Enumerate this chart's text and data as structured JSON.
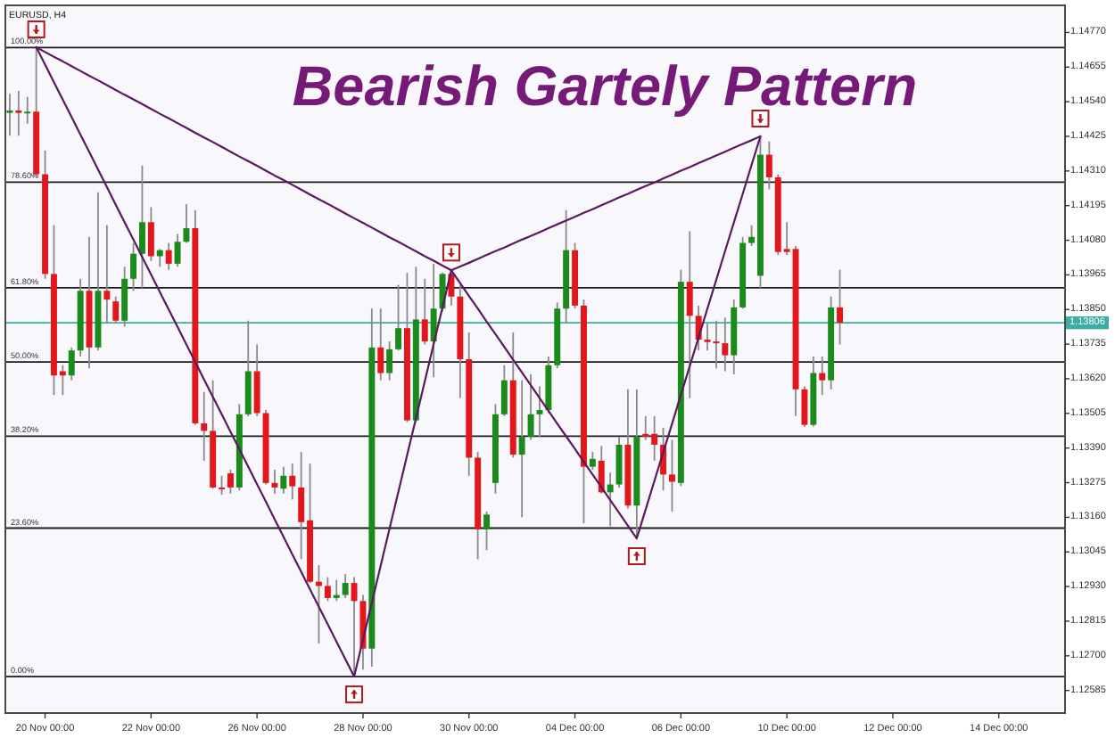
{
  "chart_data": {
    "type": "candlestick",
    "title": "Bearish Gartely Pattern",
    "subtitle": "EURUSD, H4",
    "categories": [
      null,
      null,
      null,
      null,
      "20 Nov 00:00",
      null,
      null,
      null,
      null,
      null,
      null,
      null,
      null,
      null,
      null,
      null,
      "22 Nov 00:00",
      null,
      null,
      null,
      null,
      null,
      null,
      null,
      null,
      null,
      null,
      null,
      "26 Nov 00:00",
      null,
      null,
      null,
      null,
      null,
      null,
      null,
      null,
      null,
      null,
      null,
      "28 Nov 00:00",
      null,
      null,
      null,
      null,
      null,
      null,
      null,
      null,
      null,
      null,
      null,
      "30 Nov 00:00",
      null,
      null,
      null,
      null,
      null,
      null,
      null,
      null,
      null,
      null,
      null,
      "04 Dec 00:00",
      null,
      null,
      null,
      null,
      null,
      null,
      null,
      null,
      null,
      null,
      null,
      "06 Dec 00:00",
      null,
      null,
      null,
      null,
      null,
      null,
      null,
      null,
      null,
      null,
      null,
      "10 Dec 00:00",
      null,
      null,
      null,
      null,
      null,
      null,
      null,
      null,
      null,
      null,
      null,
      "12 Dec 00:00",
      null,
      null,
      null,
      null,
      null,
      null,
      null,
      null,
      null,
      null,
      null,
      "14 Dec 00:00",
      null,
      null,
      null,
      null,
      null,
      null,
      null
    ],
    "ohlc": [
      [
        1.14503,
        1.14566,
        1.14427,
        1.14511
      ],
      [
        1.14511,
        1.14576,
        1.14427,
        1.14503
      ],
      [
        1.14503,
        1.14556,
        1.14467,
        1.14507
      ],
      [
        1.14507,
        1.14721,
        1.14289,
        1.14299
      ],
      [
        1.14299,
        1.14378,
        1.13952,
        1.13968
      ],
      [
        1.13968,
        1.1413,
        1.13566,
        1.13631
      ],
      [
        1.13645,
        1.13665,
        1.13566,
        1.13631
      ],
      [
        1.13631,
        1.13724,
        1.13615,
        1.13714
      ],
      [
        1.13714,
        1.13952,
        1.13694,
        1.13912
      ],
      [
        1.13912,
        1.14091,
        1.13655,
        1.13724
      ],
      [
        1.13724,
        1.14239,
        1.13714,
        1.13912
      ],
      [
        1.13912,
        1.1413,
        1.13803,
        1.13883
      ],
      [
        1.13877,
        1.13893,
        1.13803,
        1.13813
      ],
      [
        1.13813,
        1.13992,
        1.13793,
        1.13952
      ],
      [
        1.13952,
        1.14071,
        1.13912,
        1.14035
      ],
      [
        1.14035,
        1.14328,
        1.13922,
        1.1414
      ],
      [
        1.1414,
        1.1419,
        1.14011,
        1.14027
      ],
      [
        1.14027,
        1.14051,
        1.13992,
        1.14047
      ],
      [
        1.14047,
        1.14071,
        1.13982,
        1.14002
      ],
      [
        1.14002,
        1.14101,
        1.13992,
        1.14075
      ],
      [
        1.14075,
        1.142,
        1.14071,
        1.1412
      ],
      [
        1.1412,
        1.1418,
        1.13467,
        1.13472
      ],
      [
        1.13472,
        1.13576,
        1.13348,
        1.13447
      ],
      [
        1.13447,
        1.13615,
        1.13255,
        1.13259
      ],
      [
        1.13259,
        1.13298,
        1.13235,
        1.13255
      ],
      [
        1.13306,
        1.13318,
        1.13239,
        1.13259
      ],
      [
        1.13259,
        1.13536,
        1.13249,
        1.13502
      ],
      [
        1.13502,
        1.13813,
        1.13496,
        1.13645
      ],
      [
        1.13645,
        1.13734,
        1.13496,
        1.13506
      ],
      [
        1.13506,
        1.13516,
        1.13269,
        1.13274
      ],
      [
        1.13274,
        1.13318,
        1.13239,
        1.13259
      ],
      [
        1.13255,
        1.13328,
        1.13239,
        1.13298
      ],
      [
        1.13298,
        1.13338,
        1.13219,
        1.13263
      ],
      [
        1.13259,
        1.13377,
        1.13021,
        1.13144
      ],
      [
        1.1315,
        1.13338,
        1.12942,
        1.12946
      ],
      [
        1.12946,
        1.13001,
        1.12741,
        1.12932
      ],
      [
        1.12932,
        1.12961,
        1.12882,
        1.12892
      ],
      [
        1.12892,
        1.12952,
        1.12882,
        1.12902
      ],
      [
        1.12902,
        1.12971,
        1.12892,
        1.12942
      ],
      [
        1.12942,
        1.12961,
        1.12631,
        1.12882
      ],
      [
        1.12882,
        1.12902,
        1.12654,
        1.12724
      ],
      [
        1.12724,
        1.13853,
        1.12664,
        1.13724
      ],
      [
        1.13724,
        1.13853,
        1.13615,
        1.13639
      ],
      [
        1.13639,
        1.13744,
        1.13615,
        1.13718
      ],
      [
        1.13718,
        1.13932,
        1.13714,
        1.13788
      ],
      [
        1.13788,
        1.13972,
        1.13476,
        1.13482
      ],
      [
        1.13482,
        1.13992,
        1.13476,
        1.13817
      ],
      [
        1.13817,
        1.13952,
        1.13734,
        1.13744
      ],
      [
        1.13744,
        1.14002,
        1.13625,
        1.13853
      ],
      [
        1.13853,
        1.13972,
        1.13843,
        1.13968
      ],
      [
        1.13968,
        1.1398,
        1.13863,
        1.13893
      ],
      [
        1.13893,
        1.13932,
        1.13556,
        1.13685
      ],
      [
        1.13685,
        1.13774,
        1.13298,
        1.13358
      ],
      [
        1.13358,
        1.13377,
        1.13021,
        1.1312
      ],
      [
        1.1312,
        1.13179,
        1.13051,
        1.13169
      ],
      [
        1.13274,
        1.13536,
        1.13239,
        1.13502
      ],
      [
        1.13502,
        1.13665,
        1.13496,
        1.13615
      ],
      [
        1.13615,
        1.13774,
        1.13358,
        1.13368
      ],
      [
        1.13368,
        1.13615,
        1.1316,
        1.13427
      ],
      [
        1.13427,
        1.13635,
        1.13417,
        1.13502
      ],
      [
        1.13502,
        1.13595,
        1.13427,
        1.13516
      ],
      [
        1.13516,
        1.13694,
        1.13506,
        1.13665
      ],
      [
        1.13665,
        1.13873,
        1.13655,
        1.13853
      ],
      [
        1.13853,
        1.1418,
        1.13803,
        1.14047
      ],
      [
        1.14047,
        1.14071,
        1.13853,
        1.13863
      ],
      [
        1.13863,
        1.13883,
        1.1314,
        1.13328
      ],
      [
        1.13328,
        1.13377,
        1.13318,
        1.13354
      ],
      [
        1.13348,
        1.13397,
        1.13239,
        1.13243
      ],
      [
        1.13243,
        1.13308,
        1.1313,
        1.13269
      ],
      [
        1.13269,
        1.13427,
        1.13259,
        1.13401
      ],
      [
        1.13401,
        1.13585,
        1.13189,
        1.13199
      ],
      [
        1.13199,
        1.13585,
        1.1309,
        1.13427
      ],
      [
        1.13437,
        1.13496,
        1.13417,
        1.13427
      ],
      [
        1.13437,
        1.13496,
        1.13348,
        1.13401
      ],
      [
        1.13401,
        1.13457,
        1.13249,
        1.13302
      ],
      [
        1.13302,
        1.13417,
        1.13179,
        1.13278
      ],
      [
        1.13274,
        1.13982,
        1.13263,
        1.13942
      ],
      [
        1.13942,
        1.1411,
        1.13556,
        1.13829
      ],
      [
        1.13829,
        1.13863,
        1.13714,
        1.1375
      ],
      [
        1.1375,
        1.13803,
        1.13714,
        1.13742
      ],
      [
        1.13744,
        1.13813,
        1.13655,
        1.13738
      ],
      [
        1.13738,
        1.13823,
        1.13645,
        1.13698
      ],
      [
        1.13698,
        1.13883,
        1.13635,
        1.13857
      ],
      [
        1.13857,
        1.14091,
        1.13853,
        1.14071
      ],
      [
        1.14071,
        1.1413,
        1.14061,
        1.14091
      ],
      [
        1.13962,
        1.14425,
        1.13922,
        1.14364
      ],
      [
        1.14364,
        1.14408,
        1.14249,
        1.14289
      ],
      [
        1.14289,
        1.14299,
        1.14031,
        1.14041
      ],
      [
        1.14051,
        1.1414,
        1.14031,
        1.14041
      ],
      [
        1.14051,
        1.14061,
        1.13496,
        1.13585
      ],
      [
        1.13585,
        1.13595,
        1.13461,
        1.13467
      ],
      [
        1.13467,
        1.13694,
        1.13461,
        1.13639
      ],
      [
        1.13639,
        1.13694,
        1.13566,
        1.13615
      ],
      [
        1.13615,
        1.13893,
        1.13585,
        1.13857
      ],
      [
        1.13857,
        1.13982,
        1.13734,
        1.13806
      ],
      null,
      null,
      null,
      null,
      null,
      null,
      null,
      null,
      null,
      null,
      null,
      null,
      null,
      null,
      null,
      null,
      null,
      null,
      null,
      null,
      null,
      null,
      null,
      null,
      null
    ],
    "colors": [
      "#1a8a1a",
      "#e3161b",
      "#1a8a1a",
      "#e3161b",
      "#e3161b",
      "#e3161b",
      "#e3161b",
      "#1a8a1a",
      "#1a8a1a",
      "#e3161b",
      "#1a8a1a",
      "#e3161b",
      "#e3161b",
      "#1a8a1a",
      "#1a8a1a",
      "#1a8a1a",
      "#e3161b",
      "#1a8a1a",
      "#e3161b",
      "#1a8a1a",
      "#1a8a1a",
      "#e3161b",
      "#e3161b",
      "#e3161b",
      "#e3161b",
      "#e3161b",
      "#1a8a1a",
      "#1a8a1a",
      "#e3161b",
      "#e3161b",
      "#e3161b",
      "#1a8a1a",
      "#e3161b",
      "#e3161b",
      "#e3161b",
      "#e3161b",
      "#e3161b",
      "#1a8a1a",
      "#1a8a1a",
      "#e3161b",
      "#e3161b",
      "#1a8a1a",
      "#e3161b",
      "#1a8a1a",
      "#1a8a1a",
      "#e3161b",
      "#1a8a1a",
      "#e3161b",
      "#1a8a1a",
      "#1a8a1a",
      "#e3161b",
      "#e3161b",
      "#e3161b",
      "#e3161b",
      "#1a8a1a",
      "#1a8a1a",
      "#1a8a1a",
      "#e3161b",
      "#1a8a1a",
      "#1a8a1a",
      "#1a8a1a",
      "#1a8a1a",
      "#1a8a1a",
      "#1a8a1a",
      "#e3161b",
      "#e3161b",
      "#1a8a1a",
      "#e3161b",
      "#1a8a1a",
      "#1a8a1a",
      "#e3161b",
      "#1a8a1a",
      "#e3161b",
      "#e3161b",
      "#e3161b",
      "#e3161b",
      "#1a8a1a",
      "#e3161b",
      "#e3161b",
      "#e3161b",
      "#e3161b",
      "#e3161b",
      "#1a8a1a",
      "#1a8a1a",
      "#1a8a1a",
      "#1a8a1a",
      "#e3161b",
      "#e3161b",
      "#e3161b",
      "#e3161b",
      "#e3161b",
      "#1a8a1a",
      "#e3161b",
      "#1a8a1a",
      "#e3161b",
      null,
      null,
      null,
      null,
      null,
      null,
      null,
      null,
      null,
      null,
      null,
      null,
      null,
      null,
      null,
      null,
      null,
      null,
      null,
      null,
      null,
      null,
      null,
      null,
      null
    ],
    "series": [
      {
        "type": "line",
        "color": "#5a1a5e",
        "values": [
          null,
          null,
          null,
          1.14721,
          1.14663,
          1.14605,
          1.14547,
          1.14489,
          1.14431,
          1.14373,
          1.14315,
          1.14257,
          1.14198,
          1.1414,
          1.14082,
          1.14024,
          1.13966,
          1.13908,
          1.1385,
          1.13792,
          1.13734,
          1.13676,
          1.13618,
          1.1356,
          1.13502,
          1.13444,
          1.13386,
          1.13328,
          1.1327,
          1.13212,
          1.13153,
          1.13095,
          1.13037,
          1.12979,
          1.12921,
          1.12863,
          1.12805,
          1.12747,
          1.12689,
          1.12631,
          1.12754,
          1.12876,
          1.12999,
          1.13122,
          1.13244,
          1.13367,
          1.13489,
          1.13612,
          1.13735,
          1.13857,
          1.1398,
          null,
          null,
          null,
          null,
          null,
          null,
          null,
          null,
          null,
          null,
          null,
          null,
          null,
          null,
          null,
          null,
          null,
          null,
          null,
          null,
          null,
          null,
          null,
          null,
          null,
          null,
          null,
          null,
          null,
          null,
          null,
          null,
          null,
          null,
          null,
          null,
          null,
          null,
          null,
          null,
          null,
          null,
          null,
          null,
          null,
          null,
          null,
          null,
          null,
          null,
          null,
          null,
          null,
          null,
          null,
          null,
          null,
          null,
          null,
          null,
          null,
          null,
          null,
          null,
          null,
          null,
          null,
          null,
          null
        ]
      },
      {
        "type": "line",
        "color": "#5a1a5e",
        "values": [
          null,
          null,
          null,
          1.14721,
          1.14705,
          1.14689,
          1.14674,
          1.14658,
          1.14642,
          1.14626,
          1.14611,
          1.14595,
          1.14579,
          1.14563,
          1.14548,
          1.14532,
          1.14516,
          1.145,
          1.14485,
          1.14469,
          1.14453,
          1.14437,
          1.14421,
          1.14406,
          1.1439,
          1.14374,
          1.14358,
          1.14343,
          1.14327,
          1.14311,
          1.14295,
          1.1428,
          1.14264,
          1.14248,
          1.14232,
          1.14216,
          1.14201,
          1.14185,
          1.14169,
          1.14153,
          1.14138,
          1.14122,
          1.14106,
          1.1409,
          1.14075,
          1.14059,
          1.14043,
          1.14027,
          1.14012,
          1.13996,
          1.1398,
          null,
          null,
          null,
          null,
          null,
          null,
          null,
          null,
          null,
          null,
          null,
          null,
          null,
          null,
          null,
          null,
          null,
          null,
          null,
          null,
          null,
          null,
          null,
          null,
          null,
          null,
          null,
          null,
          null,
          null,
          null,
          null,
          null,
          null,
          null,
          null,
          null,
          null,
          null,
          null,
          null,
          null,
          null,
          null,
          null,
          null,
          null,
          null,
          null,
          null,
          null,
          null,
          null,
          null,
          null,
          null,
          null,
          null,
          null,
          null,
          null,
          null,
          null,
          null,
          null,
          null,
          null,
          null,
          null
        ]
      },
      {
        "type": "line",
        "color": "#5a1a5e",
        "values": [
          null,
          null,
          null,
          null,
          null,
          null,
          null,
          null,
          null,
          null,
          null,
          null,
          null,
          null,
          null,
          null,
          null,
          null,
          null,
          null,
          null,
          null,
          null,
          null,
          null,
          null,
          null,
          null,
          null,
          null,
          null,
          null,
          null,
          null,
          null,
          null,
          null,
          null,
          null,
          null,
          null,
          null,
          null,
          null,
          null,
          null,
          null,
          null,
          null,
          null,
          1.1398,
          1.13938,
          1.13895,
          1.13853,
          1.1381,
          1.13768,
          1.13726,
          1.13683,
          1.13641,
          1.13599,
          1.13556,
          1.13514,
          1.13471,
          1.13429,
          1.13387,
          1.13344,
          1.13302,
          1.1326,
          1.13217,
          1.13175,
          1.13132,
          1.1309,
          1.13185,
          1.13281,
          1.13376,
          1.13471,
          1.13567,
          1.13662,
          1.13757,
          1.13853,
          1.13948,
          1.14044,
          1.14139,
          1.14234,
          1.1433,
          1.14425,
          null,
          null,
          null,
          null,
          null,
          null,
          null,
          null,
          null,
          null,
          null,
          null,
          null,
          null,
          null,
          null,
          null,
          null,
          null,
          null,
          null,
          null,
          null,
          null,
          null,
          null,
          null,
          null,
          null,
          null,
          null,
          null,
          null,
          null
        ]
      },
      {
        "type": "line",
        "color": "#5a1a5e",
        "values": [
          null,
          null,
          null,
          null,
          null,
          null,
          null,
          null,
          null,
          null,
          null,
          null,
          null,
          null,
          null,
          null,
          null,
          null,
          null,
          null,
          null,
          null,
          null,
          null,
          null,
          null,
          null,
          null,
          null,
          null,
          null,
          null,
          null,
          null,
          null,
          null,
          null,
          null,
          null,
          null,
          null,
          null,
          null,
          null,
          null,
          null,
          null,
          null,
          null,
          null,
          1.1398,
          1.13993,
          1.14005,
          1.14018,
          1.14031,
          1.14044,
          1.14056,
          1.14069,
          1.14082,
          1.14094,
          1.14107,
          1.1412,
          1.14133,
          1.14145,
          1.14158,
          1.14171,
          1.14183,
          1.14196,
          1.14209,
          1.14222,
          1.14234,
          1.14247,
          1.1426,
          1.14272,
          1.14285,
          1.14298,
          1.14311,
          1.14323,
          1.14336,
          1.14349,
          1.14361,
          1.14374,
          1.14387,
          1.144,
          1.14412,
          1.14425,
          null,
          null,
          null,
          null,
          null,
          null,
          null,
          null,
          null,
          null,
          null,
          null,
          null,
          null,
          null,
          null,
          null,
          null,
          null,
          null,
          null,
          null,
          null,
          null,
          null,
          null,
          null,
          null,
          null,
          null,
          null,
          null,
          null,
          null
        ]
      }
    ],
    "ylim": [
      1.1251,
      1.1486
    ],
    "yticks": [
      {
        "value": 1.1477,
        "label": "1.14770"
      },
      1.14655,
      {
        "value": 1.1454,
        "label": "1.14540"
      },
      1.14425,
      {
        "value": 1.1431,
        "label": "1.14310"
      },
      1.14195,
      {
        "value": 1.1408,
        "label": "1.14080"
      },
      1.13965,
      {
        "value": 1.1385,
        "label": "1.13850"
      },
      1.13735,
      {
        "value": 1.1362,
        "label": "1.13620"
      },
      1.13505,
      {
        "value": 1.1339,
        "label": "1.13390"
      },
      1.13275,
      {
        "value": 1.1316,
        "label": "1.13160"
      },
      1.13045,
      {
        "value": 1.1293,
        "label": "1.12930"
      },
      1.12815,
      {
        "value": 1.127,
        "label": "1.12700"
      },
      1.12585
    ],
    "y2lim": [
      -5.8,
      106.7
    ],
    "ref_lines": [
      {
        "axis": "y2",
        "value": 100,
        "label": "100.00%"
      },
      {
        "axis": "y2",
        "value": 78.6,
        "label": "78.60%"
      },
      {
        "axis": "y2",
        "value": 61.8,
        "label": "61.80%"
      },
      {
        "axis": "y2",
        "value": 50,
        "label": "50.00%"
      },
      {
        "axis": "y2",
        "value": 38.2,
        "label": "38.20%"
      },
      {
        "axis": "y2",
        "value": 23.6,
        "label": "23.60%"
      },
      {
        "axis": "y2",
        "value": 0,
        "label": "0.00%"
      },
      {
        "axis": "y",
        "value": 1.13806,
        "label": "1.13806",
        "color": "#3aaea4"
      }
    ]
  }
}
